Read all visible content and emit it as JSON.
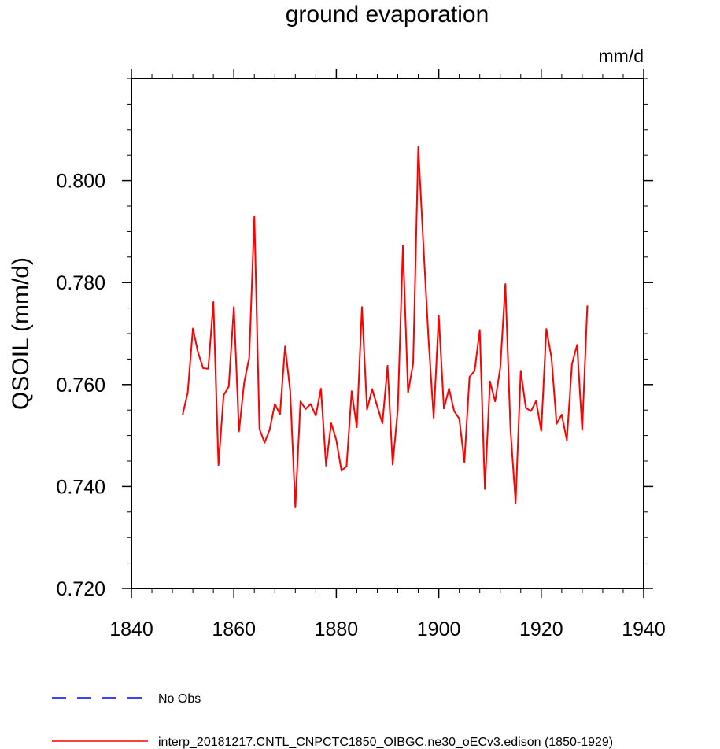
{
  "chart_data": {
    "type": "line",
    "title": "ground evaporation",
    "units_label": "mm/d",
    "xlabel": "",
    "ylabel": "QSOIL  (mm/d)",
    "xlim": [
      1840,
      1940
    ],
    "ylim": [
      0.72,
      0.82
    ],
    "x_ticks": [
      1840,
      1860,
      1880,
      1900,
      1920,
      1940
    ],
    "x_tick_labels": [
      "1840",
      "1860",
      "1880",
      "1900",
      "1920",
      "1940"
    ],
    "y_ticks": [
      0.72,
      0.74,
      0.76,
      0.78,
      0.8
    ],
    "y_tick_labels": [
      "0.720",
      "0.740",
      "0.760",
      "0.780",
      "0.800"
    ],
    "grid": false,
    "series": [
      {
        "name": "interp_20181217.CNTL_CNPCTC1850_OIBGC.ne30_oECv3.edison (1850-1929)",
        "color": "#ff0000",
        "dash": "solid",
        "x": [
          1850,
          1851,
          1852,
          1853,
          1854,
          1855,
          1856,
          1857,
          1858,
          1859,
          1860,
          1861,
          1862,
          1863,
          1864,
          1865,
          1866,
          1867,
          1868,
          1869,
          1870,
          1871,
          1872,
          1873,
          1874,
          1875,
          1876,
          1877,
          1878,
          1879,
          1880,
          1881,
          1882,
          1883,
          1884,
          1885,
          1886,
          1887,
          1888,
          1889,
          1890,
          1891,
          1892,
          1893,
          1894,
          1895,
          1896,
          1897,
          1898,
          1899,
          1900,
          1901,
          1902,
          1903,
          1904,
          1905,
          1906,
          1907,
          1908,
          1909,
          1910,
          1911,
          1912,
          1913,
          1914,
          1915,
          1916,
          1917,
          1918,
          1919,
          1920,
          1921,
          1922,
          1923,
          1924,
          1925,
          1926,
          1927,
          1928,
          1929
        ],
        "values": [
          0.7541,
          0.7585,
          0.771,
          0.7663,
          0.7632,
          0.7631,
          0.7762,
          0.7442,
          0.7579,
          0.7596,
          0.7752,
          0.7508,
          0.7603,
          0.7653,
          0.793,
          0.7513,
          0.7486,
          0.7512,
          0.7562,
          0.7542,
          0.7675,
          0.7587,
          0.7359,
          0.7567,
          0.7552,
          0.7562,
          0.7539,
          0.7592,
          0.7441,
          0.7524,
          0.7491,
          0.7431,
          0.744,
          0.7587,
          0.7516,
          0.7752,
          0.7551,
          0.7591,
          0.7557,
          0.7524,
          0.7637,
          0.7443,
          0.7551,
          0.7872,
          0.7584,
          0.7642,
          0.8066,
          0.7873,
          0.7689,
          0.7535,
          0.7735,
          0.7553,
          0.7592,
          0.7548,
          0.7533,
          0.7448,
          0.7615,
          0.7627,
          0.7707,
          0.7395,
          0.7606,
          0.7567,
          0.7632,
          0.7797,
          0.7512,
          0.7368,
          0.7627,
          0.7554,
          0.7548,
          0.7568,
          0.7509,
          0.7709,
          0.7653,
          0.7523,
          0.7541,
          0.7491,
          0.764,
          0.7678,
          0.7511,
          0.7755
        ]
      },
      {
        "name": "No Obs",
        "color": "#0000ff",
        "dash": "dashed",
        "x": [],
        "values": []
      }
    ],
    "legend": [
      {
        "label": "No Obs",
        "color": "#0000ff",
        "dash": "dashed"
      },
      {
        "label": "interp_20181217.CNTL_CNPCTC1850_OIBGC.ne30_oECv3.edison (1850-1929)",
        "color": "#ff0000",
        "dash": "solid"
      }
    ]
  }
}
